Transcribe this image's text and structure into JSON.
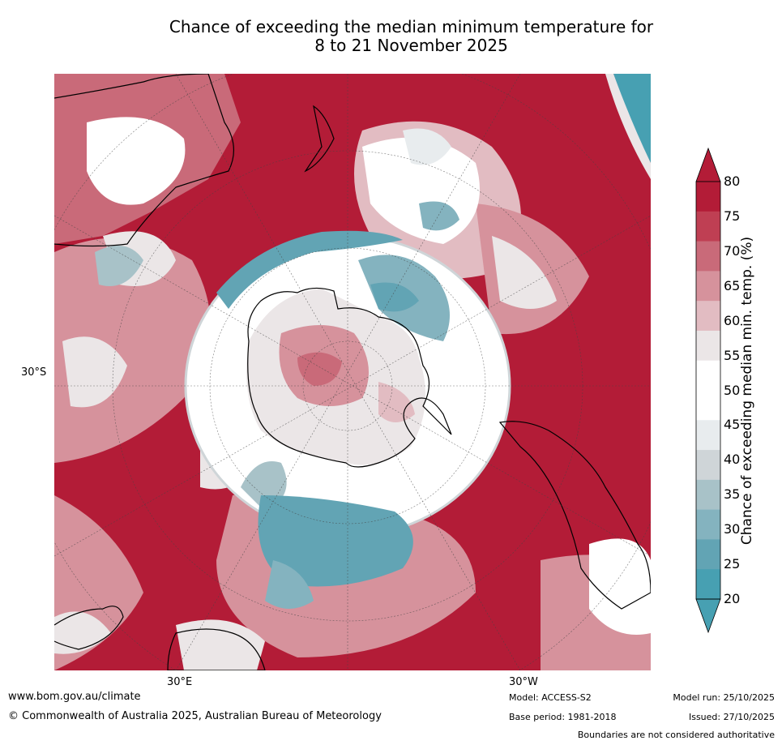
{
  "title_line1": "Chance of exceeding the median minimum temperature for",
  "title_line2": "8 to 21 November 2025",
  "axis_labels": {
    "lat": "30°S",
    "lon_east": "30°E",
    "lon_west": "30°W"
  },
  "colorbar": {
    "title": "Chance of exceeding median min. temp. (%)",
    "ticks": [
      "80",
      "75",
      "70",
      "65",
      "60",
      "55",
      "50",
      "45",
      "40",
      "35",
      "30",
      "25",
      "20"
    ],
    "colors": [
      "#b31c37",
      "#bf3f53",
      "#c96a79",
      "#d6929c",
      "#e2bcc2",
      "#ebe6e7",
      "#ffffff",
      "#ffffff",
      "#e8ecee",
      "#cfd5d8",
      "#a8c2c8",
      "#84b3bf",
      "#62a4b4",
      "#47a0b2"
    ],
    "extend_top_color": "#b31c37",
    "extend_bottom_color": "#47a0b2"
  },
  "footer": {
    "website": "www.bom.gov.au/climate",
    "copyright": "© Commonwealth of Australia 2025, Australian Bureau of Meteorology",
    "model": "Model: ACCESS-S2",
    "base_period": "Base period: 1981-2018",
    "model_run": "Model run: 25/10/2025",
    "issued": "Issued: 27/10/2025",
    "disclaimer": "Boundaries are not considered authoritative"
  }
}
